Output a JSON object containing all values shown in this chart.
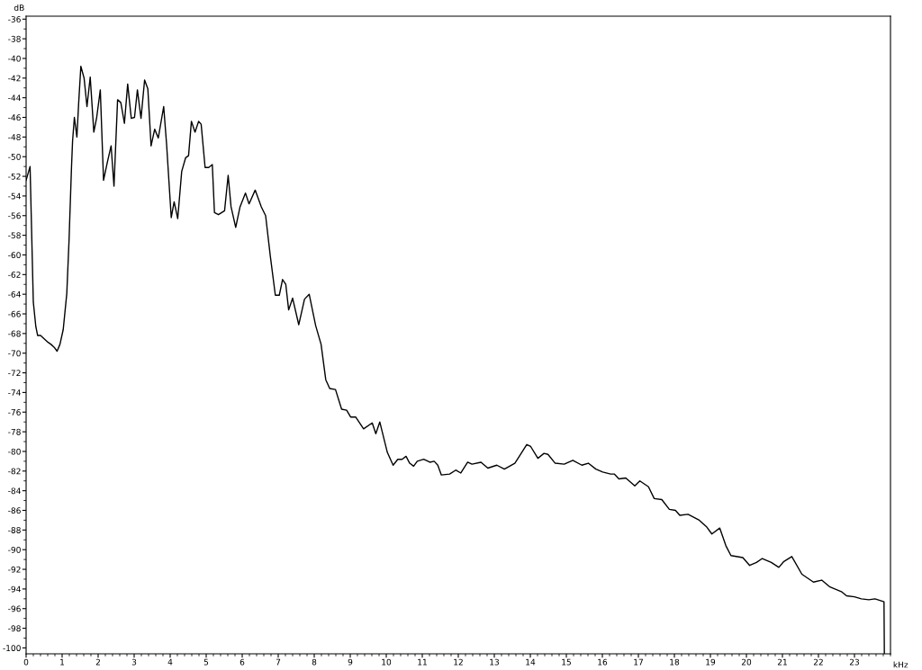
{
  "chart_data": {
    "type": "line",
    "xlabel": "kHz",
    "ylabel": "dB",
    "xlim": [
      0,
      24
    ],
    "ylim": [
      -100.6,
      -35.7
    ],
    "xticks": [
      0,
      1,
      2,
      3,
      4,
      5,
      6,
      7,
      8,
      9,
      10,
      11,
      12,
      13,
      14,
      15,
      16,
      17,
      18,
      19,
      20,
      21,
      22,
      23
    ],
    "yticks": [
      -100,
      -98,
      -96,
      -94,
      -92,
      -90,
      -88,
      -86,
      -84,
      -82,
      -80,
      -78,
      -76,
      -74,
      -72,
      -70,
      -68,
      -66,
      -64,
      -62,
      -60,
      -58,
      -56,
      -54,
      -52,
      -50,
      -48,
      -46,
      -44,
      -42,
      -40,
      -38,
      -36
    ],
    "grid": false,
    "marker": "none",
    "line_style": "solid",
    "series": [
      {
        "color": "#000000",
        "x": [
          0,
          0.11,
          0.2,
          0.27,
          0.32,
          0.4,
          0.61,
          0.69,
          0.78,
          0.86,
          0.94,
          1.03,
          1.13,
          1.19,
          1.26,
          1.29,
          1.34,
          1.41,
          1.46,
          1.52,
          1.61,
          1.69,
          1.78,
          1.88,
          1.96,
          2.06,
          2.15,
          2.26,
          2.36,
          2.44,
          2.54,
          2.63,
          2.73,
          2.82,
          2.92,
          3.01,
          3.09,
          3.19,
          3.29,
          3.38,
          3.47,
          3.57,
          3.67,
          3.82,
          3.9,
          4.03,
          4.11,
          4.21,
          4.32,
          4.43,
          4.51,
          4.59,
          4.69,
          4.79,
          4.86,
          4.97,
          5.07,
          5.17,
          5.23,
          5.34,
          5.51,
          5.61,
          5.69,
          5.82,
          5.94,
          6.09,
          6.19,
          6.36,
          6.53,
          6.65,
          6.78,
          6.92,
          7.03,
          7.12,
          7.21,
          7.29,
          7.4,
          7.57,
          7.73,
          7.86,
          8.04,
          8.19,
          8.32,
          8.43,
          8.59,
          8.76,
          8.9,
          9.01,
          9.15,
          9.37,
          9.61,
          9.71,
          9.82,
          10.03,
          10.19,
          10.32,
          10.44,
          10.55,
          10.65,
          10.76,
          10.86,
          11.04,
          11.21,
          11.33,
          11.43,
          11.53,
          11.76,
          11.93,
          12.07,
          12.26,
          12.38,
          12.63,
          12.82,
          13.07,
          13.28,
          13.57,
          13.73,
          13.9,
          14.01,
          14.21,
          14.38,
          14.49,
          14.69,
          14.94,
          15.18,
          15.43,
          15.61,
          15.82,
          16.01,
          16.23,
          16.33,
          16.46,
          16.65,
          16.9,
          17.04,
          17.28,
          17.44,
          17.65,
          17.86,
          18.03,
          18.15,
          18.38,
          18.69,
          18.9,
          19.04,
          19.26,
          19.43,
          19.57,
          19.9,
          20.09,
          20.28,
          20.44,
          20.69,
          20.9,
          21.04,
          21.26,
          21.54,
          21.86,
          22.09,
          22.32,
          22.65,
          22.78,
          23.0,
          23.19,
          23.4,
          23.57,
          23.82,
          23.83
        ],
        "values": [
          -52.4,
          -51.0,
          -64.8,
          -67.3,
          -68.2,
          -68.2,
          -68.9,
          -69.1,
          -69.4,
          -69.8,
          -69.1,
          -67.6,
          -63.9,
          -58.7,
          -51.1,
          -48.4,
          -46.0,
          -48.0,
          -44.5,
          -40.8,
          -42.0,
          -44.9,
          -41.9,
          -47.5,
          -46.0,
          -43.2,
          -52.4,
          -50.5,
          -48.9,
          -53.0,
          -44.2,
          -44.5,
          -46.6,
          -42.6,
          -46.1,
          -46.0,
          -43.2,
          -46.1,
          -42.2,
          -43.1,
          -48.9,
          -47.2,
          -48.1,
          -44.9,
          -48.7,
          -56.2,
          -54.6,
          -56.3,
          -51.5,
          -50.1,
          -49.9,
          -46.4,
          -47.5,
          -46.4,
          -46.7,
          -51.1,
          -51.1,
          -50.8,
          -55.7,
          -55.9,
          -55.5,
          -51.9,
          -55.1,
          -57.2,
          -55.1,
          -53.7,
          -54.8,
          -53.4,
          -55.1,
          -56.0,
          -60.1,
          -64.1,
          -64.1,
          -62.5,
          -63.0,
          -65.6,
          -64.4,
          -67.1,
          -64.5,
          -64.0,
          -67.2,
          -69.1,
          -72.7,
          -73.6,
          -73.7,
          -75.7,
          -75.8,
          -76.5,
          -76.5,
          -77.7,
          -77.1,
          -78.2,
          -77.0,
          -80.1,
          -81.4,
          -80.8,
          -80.8,
          -80.5,
          -81.2,
          -81.5,
          -81.0,
          -80.8,
          -81.1,
          -81.0,
          -81.4,
          -82.4,
          -82.3,
          -81.9,
          -82.2,
          -81.1,
          -81.3,
          -81.1,
          -81.7,
          -81.4,
          -81.8,
          -81.2,
          -80.3,
          -79.3,
          -79.5,
          -80.7,
          -80.2,
          -80.3,
          -81.2,
          -81.3,
          -80.9,
          -81.4,
          -81.2,
          -81.8,
          -82.1,
          -82.3,
          -82.3,
          -82.8,
          -82.7,
          -83.5,
          -83.0,
          -83.6,
          -84.8,
          -84.9,
          -85.9,
          -86.0,
          -86.5,
          -86.4,
          -87.0,
          -87.7,
          -88.4,
          -87.8,
          -89.6,
          -90.6,
          -90.8,
          -91.6,
          -91.3,
          -90.9,
          -91.3,
          -91.8,
          -91.2,
          -90.7,
          -92.5,
          -93.3,
          -93.1,
          -93.8,
          -94.3,
          -94.7,
          -94.8,
          -95.0,
          -95.1,
          -95.0,
          -95.3,
          -100.6
        ]
      }
    ]
  }
}
